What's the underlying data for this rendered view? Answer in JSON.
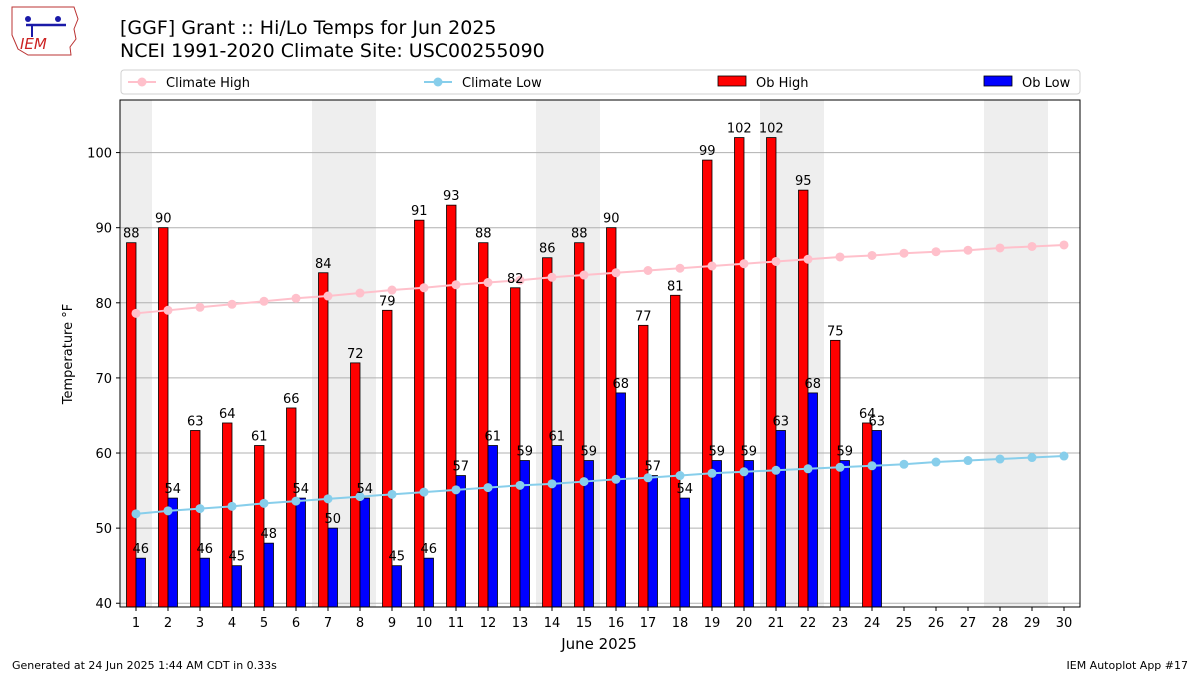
{
  "header": {
    "title_line1": "[GGF] Grant :: Hi/Lo Temps for Jun 2025",
    "title_line2": "NCEI 1991-2020 Climate Site: USC00255090"
  },
  "logo": {
    "text": "IEM",
    "icon": "iowa-state-outline-logo"
  },
  "footer": {
    "left": "Generated at 24 Jun 2025 1:44 AM CDT in 0.33s",
    "right": "IEM Autoplot App #17"
  },
  "colors": {
    "ob_high": "#ff0000",
    "ob_low": "#0000ff",
    "climate_high": "#ffc0cb",
    "climate_low": "#87ceeb",
    "weekend_shade": "#eeeeee",
    "grid": "#b0b0b0"
  },
  "chart_data": {
    "type": "bar",
    "title": "[GGF] Grant :: Hi/Lo Temps for Jun 2025",
    "subtitle": "NCEI 1991-2020 Climate Site: USC00255090",
    "xlabel": "June 2025",
    "ylabel": "Temperature °F",
    "ylim": [
      39.5,
      107
    ],
    "yticks": [
      40,
      50,
      60,
      70,
      80,
      90,
      100
    ],
    "grid": "horizontal",
    "legend": "top",
    "categories": [
      "1",
      "2",
      "3",
      "4",
      "5",
      "6",
      "7",
      "8",
      "9",
      "10",
      "11",
      "12",
      "13",
      "14",
      "15",
      "16",
      "17",
      "18",
      "19",
      "20",
      "21",
      "22",
      "23",
      "24",
      "25",
      "26",
      "27",
      "28",
      "29",
      "30"
    ],
    "shaded_days": [
      1,
      7,
      8,
      14,
      15,
      21,
      22,
      28,
      29
    ],
    "series": [
      {
        "name": "Ob High",
        "kind": "bar",
        "values": [
          88,
          90,
          63,
          64,
          61,
          66,
          84,
          72,
          79,
          91,
          93,
          88,
          82,
          86,
          88,
          90,
          77,
          81,
          99,
          102,
          102,
          95,
          75,
          64,
          null,
          null,
          null,
          null,
          null,
          null
        ]
      },
      {
        "name": "Ob Low",
        "kind": "bar",
        "values": [
          46,
          54,
          46,
          45,
          48,
          54,
          50,
          54,
          45,
          46,
          57,
          61,
          59,
          61,
          59,
          68,
          57,
          54,
          59,
          59,
          63,
          68,
          59,
          63,
          null,
          null,
          null,
          null,
          null,
          null
        ]
      },
      {
        "name": "Climate High",
        "kind": "line",
        "values": [
          78.6,
          79.0,
          79.4,
          79.8,
          80.2,
          80.6,
          80.9,
          81.3,
          81.7,
          82.0,
          82.4,
          82.7,
          83.0,
          83.4,
          83.7,
          84.0,
          84.3,
          84.6,
          84.9,
          85.2,
          85.5,
          85.8,
          86.1,
          86.3,
          86.6,
          86.8,
          87.0,
          87.3,
          87.5,
          87.7
        ]
      },
      {
        "name": "Climate Low",
        "kind": "line",
        "values": [
          51.9,
          52.3,
          52.6,
          52.9,
          53.3,
          53.6,
          53.9,
          54.2,
          54.5,
          54.8,
          55.1,
          55.4,
          55.7,
          55.9,
          56.2,
          56.5,
          56.7,
          57.0,
          57.3,
          57.5,
          57.7,
          57.9,
          58.1,
          58.3,
          58.5,
          58.8,
          59.0,
          59.2,
          59.4,
          59.6
        ]
      }
    ]
  }
}
